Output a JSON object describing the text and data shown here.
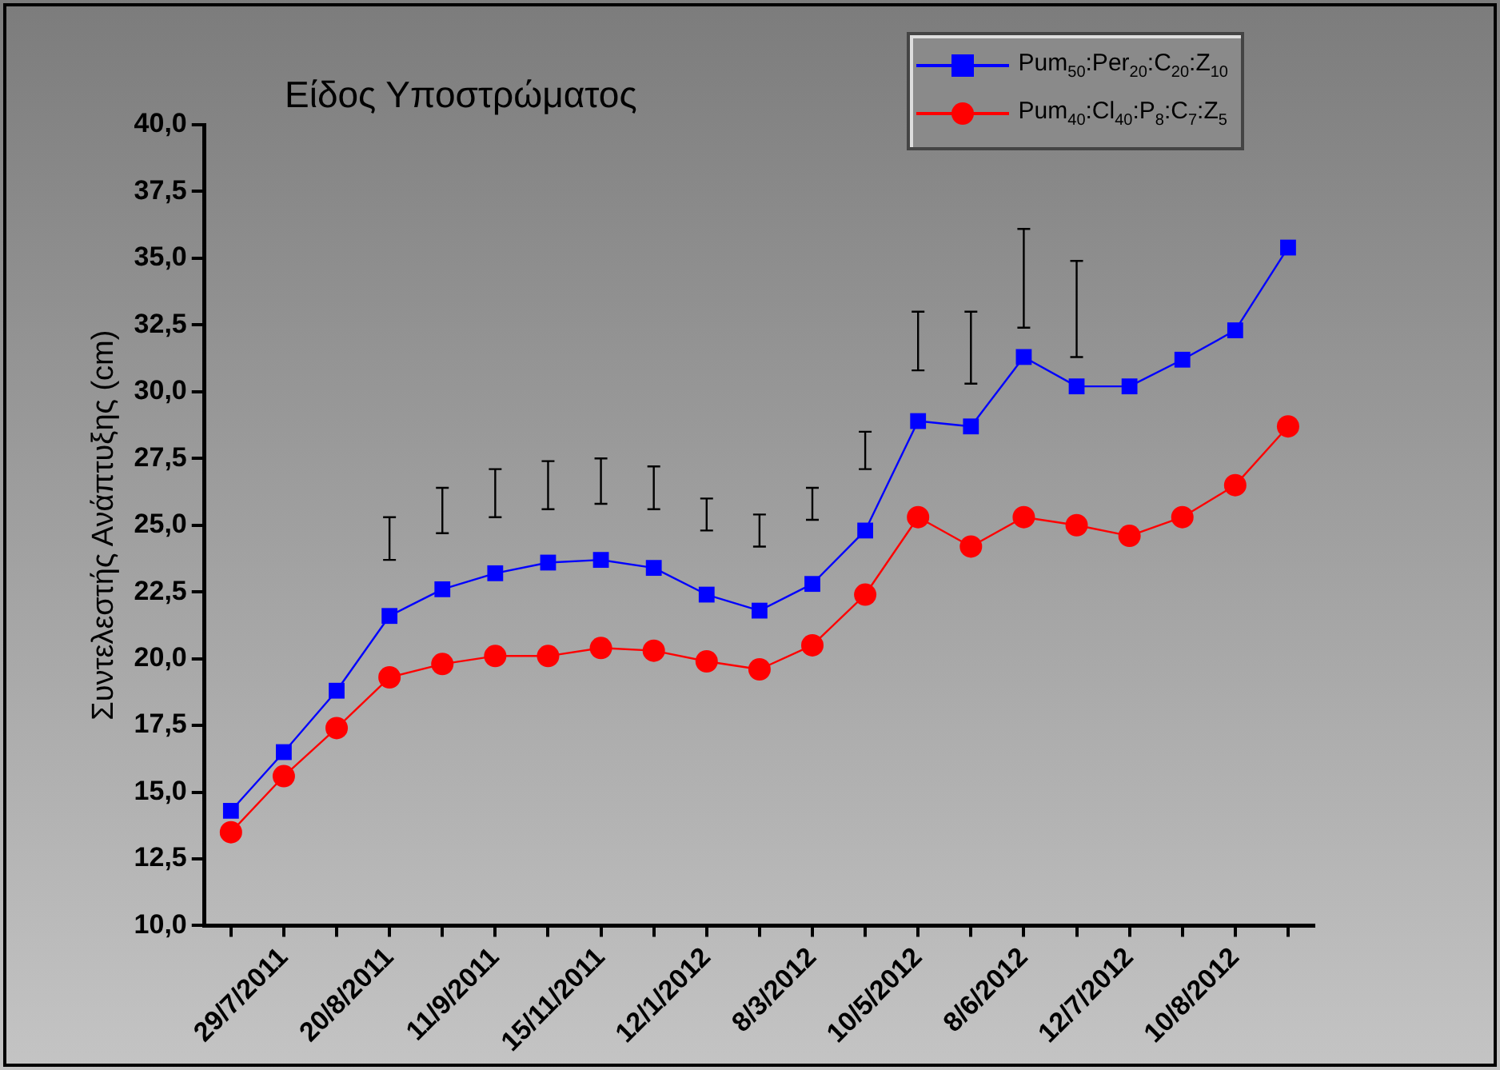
{
  "chart_data": {
    "type": "line",
    "title": "Είδος Υποστρώματος",
    "ylabel": "Συντελεστής Ανάπτυξης (cm)",
    "categories": [
      null,
      "29/7/2011",
      null,
      "20/8/2011",
      null,
      "11/9/2011",
      null,
      "15/11/2011",
      null,
      "12/1/2012",
      null,
      "8/3/2012",
      null,
      "10/5/2012",
      null,
      "8/6/2012",
      null,
      "12/7/2012",
      null,
      "10/8/2012",
      null
    ],
    "series": [
      {
        "name": "Pum$_{50}$:Per$_{20}$:C$_{20}$:Z$_{10}$",
        "color": "#0000ff",
        "marker": "square",
        "values": [
          14.3,
          16.5,
          18.8,
          21.6,
          22.6,
          23.2,
          23.6,
          23.7,
          23.4,
          22.4,
          21.8,
          22.8,
          24.8,
          28.9,
          28.7,
          31.3,
          30.2,
          30.2,
          31.2,
          32.3,
          35.4
        ],
        "errors": [
          null,
          null,
          null,
          [
            23.7,
            25.3
          ],
          [
            24.7,
            26.4
          ],
          [
            25.3,
            27.1
          ],
          [
            25.6,
            27.4
          ],
          [
            25.8,
            27.5
          ],
          [
            25.6,
            27.2
          ],
          [
            24.8,
            26.0
          ],
          [
            24.2,
            25.4
          ],
          [
            25.2,
            26.4
          ],
          [
            27.1,
            28.5
          ],
          [
            30.8,
            33.0
          ],
          [
            30.3,
            33.0
          ],
          [
            32.4,
            36.1
          ],
          [
            31.3,
            34.9
          ],
          null,
          null,
          null,
          null
        ]
      },
      {
        "name": "Pum$_{40}$:Cl$_{40}$:P$_{8}$:C$_{7}$:Z$_{5}$",
        "color": "#ff0000",
        "marker": "circle",
        "values": [
          13.5,
          15.6,
          17.4,
          19.3,
          19.8,
          20.1,
          20.1,
          20.4,
          20.3,
          19.9,
          19.6,
          20.5,
          22.4,
          25.3,
          24.2,
          25.3,
          25.0,
          24.6,
          25.3,
          26.5,
          28.7
        ]
      }
    ],
    "ylim": [
      10,
      40
    ],
    "yticks": [
      {
        "value": 10,
        "label": "10,0"
      },
      {
        "value": 12.5,
        "label": "12,5"
      },
      {
        "value": 15,
        "label": "15,0"
      },
      {
        "value": 17.5,
        "label": "17,5"
      },
      {
        "value": 20,
        "label": "20,0"
      },
      {
        "value": 22.5,
        "label": "22,5"
      },
      {
        "value": 25,
        "label": "25,0"
      },
      {
        "value": 27.5,
        "label": "27,5"
      },
      {
        "value": 30,
        "label": "30,0"
      },
      {
        "value": 32.5,
        "label": "32,5"
      },
      {
        "value": 35,
        "label": "35,0"
      },
      {
        "value": 37.5,
        "label": "37,5"
      },
      {
        "value": 40,
        "label": "40,0"
      }
    ],
    "grid": false,
    "legend": "top right"
  }
}
